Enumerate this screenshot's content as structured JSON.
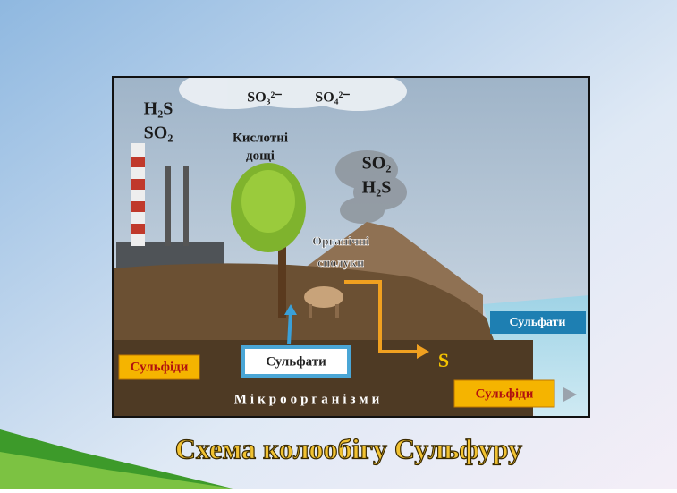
{
  "illustration": {
    "factory_gases": [
      "H₂S",
      "SO₂"
    ],
    "sky_ions": [
      "SO₃²⁻",
      "SO₄²⁻"
    ],
    "acid_rain": [
      "Кислотні",
      "дощі"
    ],
    "volcano_gases": [
      "SO₂",
      "H₂S"
    ],
    "organic": [
      "Органічні",
      "сполуки"
    ],
    "sea_box": "Сульфати",
    "left_box": "Сульфіди",
    "center_box": "Сульфати",
    "sulfur": "S",
    "microorganisms": "Мікроорганізми",
    "right_box": "Сульфіди"
  },
  "title": "Схема колообігу Сульфуру"
}
